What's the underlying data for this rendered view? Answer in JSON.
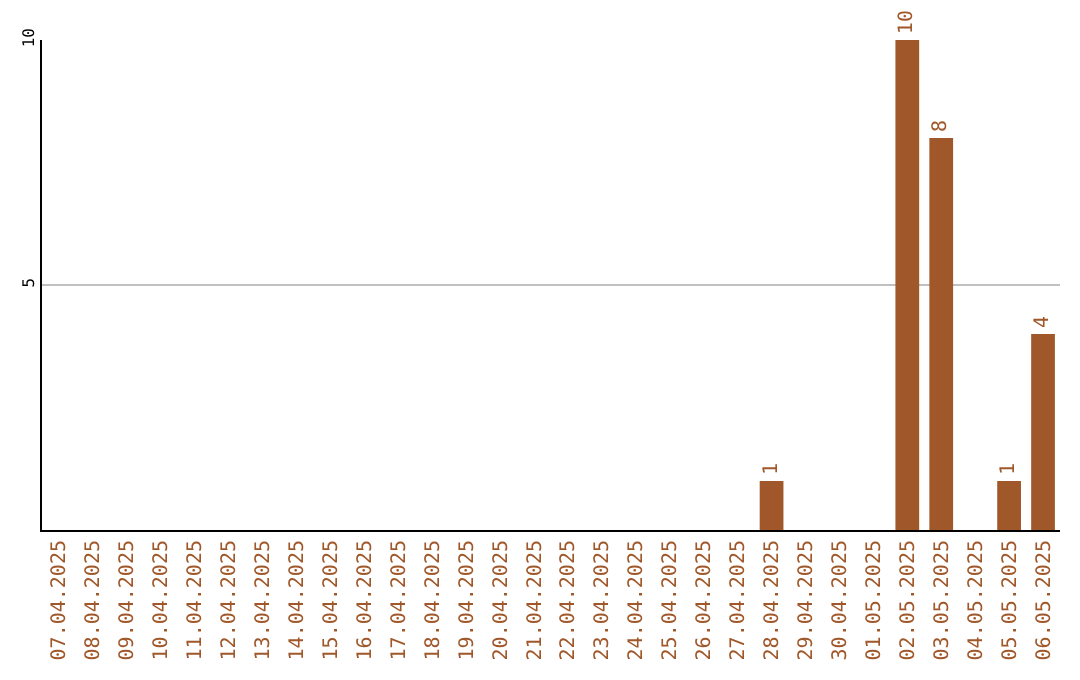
{
  "chart_data": {
    "type": "bar",
    "categories": [
      "07.04.2025",
      "08.04.2025",
      "09.04.2025",
      "10.04.2025",
      "11.04.2025",
      "12.04.2025",
      "13.04.2025",
      "14.04.2025",
      "15.04.2025",
      "16.04.2025",
      "17.04.2025",
      "18.04.2025",
      "19.04.2025",
      "20.04.2025",
      "21.04.2025",
      "22.04.2025",
      "23.04.2025",
      "24.04.2025",
      "25.04.2025",
      "26.04.2025",
      "27.04.2025",
      "28.04.2025",
      "29.04.2025",
      "30.04.2025",
      "01.05.2025",
      "02.05.2025",
      "03.05.2025",
      "04.05.2025",
      "05.05.2025",
      "06.05.2025"
    ],
    "values": [
      0,
      0,
      0,
      0,
      0,
      0,
      0,
      0,
      0,
      0,
      0,
      0,
      0,
      0,
      0,
      0,
      0,
      0,
      0,
      0,
      0,
      1,
      0,
      0,
      0,
      10,
      8,
      0,
      1,
      4
    ],
    "value_labels": [
      null,
      null,
      null,
      null,
      null,
      null,
      null,
      null,
      null,
      null,
      null,
      null,
      null,
      null,
      null,
      null,
      null,
      null,
      null,
      null,
      null,
      "1",
      null,
      null,
      null,
      "10",
      "8",
      null,
      "1",
      "4"
    ],
    "color": "#a0582a",
    "ylim": [
      0,
      10
    ],
    "yticks": [
      5,
      10
    ],
    "grid": "y",
    "legend": false
  }
}
